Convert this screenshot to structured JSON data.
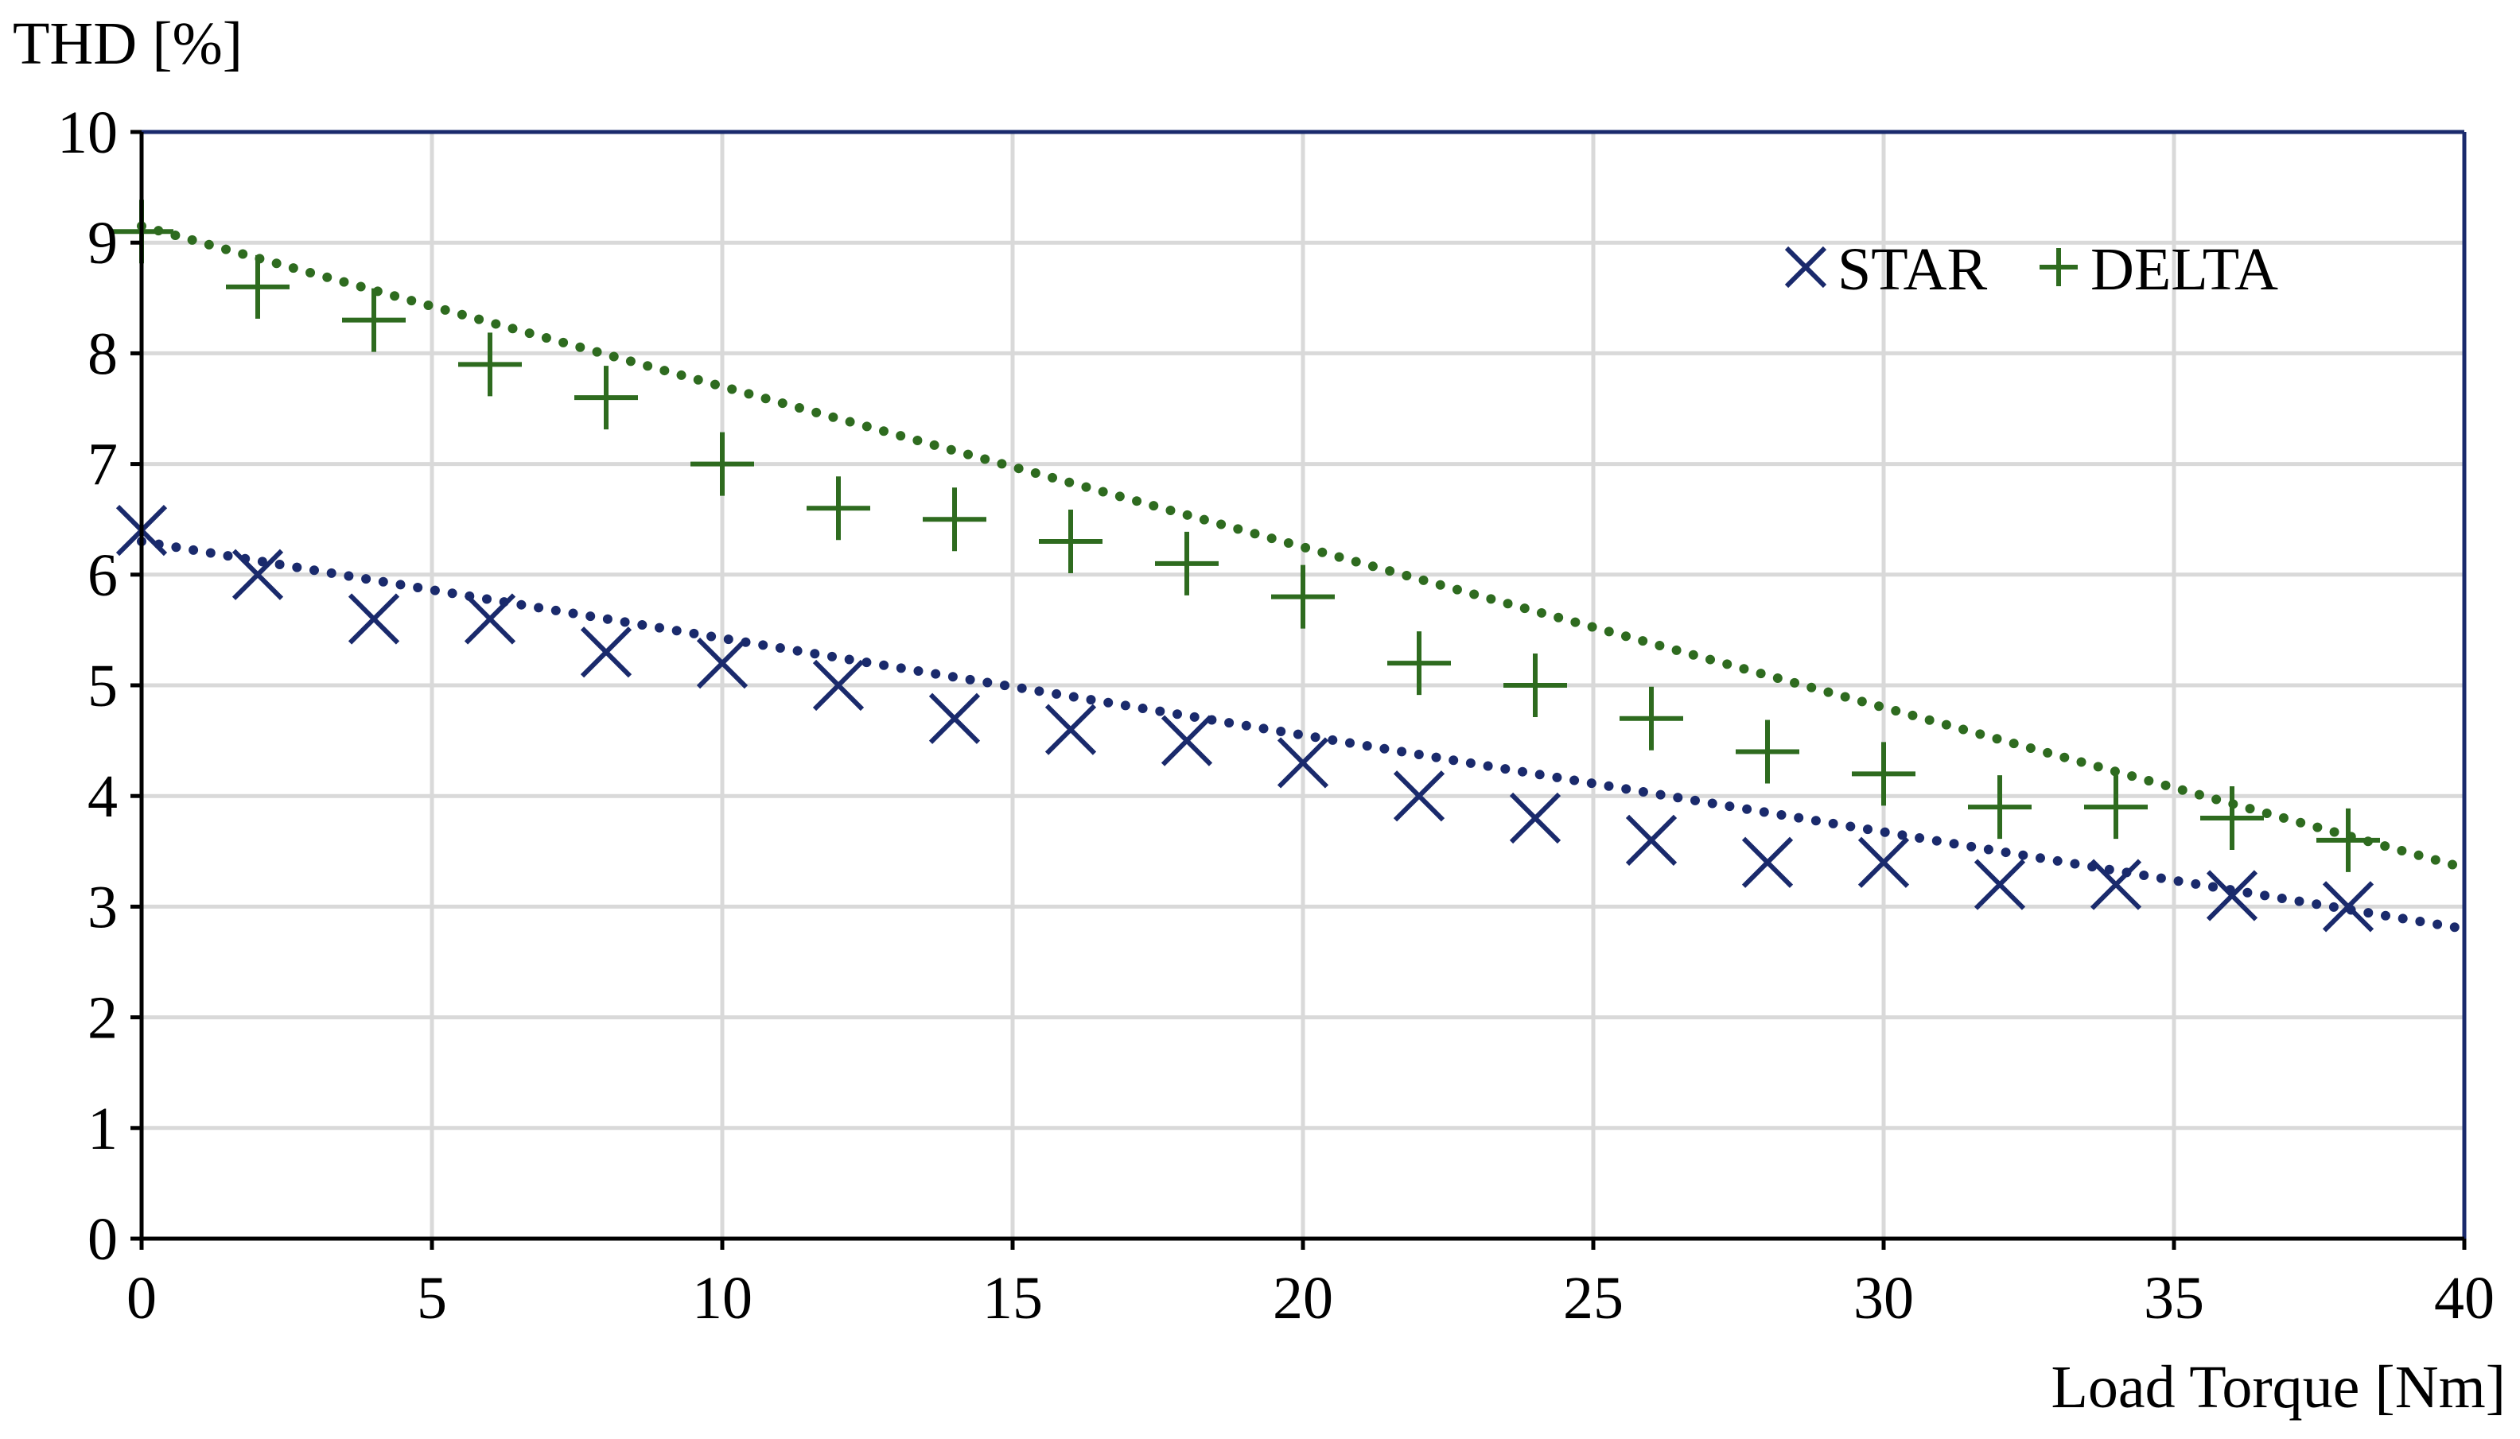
{
  "chart_data": {
    "type": "scatter",
    "ylabel": "THD [%]",
    "xlabel": "Load Torque [Nm]",
    "xlim": [
      0,
      40
    ],
    "ylim": [
      0,
      10
    ],
    "xticks": [
      0,
      5,
      10,
      15,
      20,
      25,
      30,
      35,
      40
    ],
    "yticks": [
      0,
      1,
      2,
      3,
      4,
      5,
      6,
      7,
      8,
      9,
      10
    ],
    "grid": true,
    "legend_position": "top-right",
    "series": [
      {
        "name": "STAR",
        "marker": "x",
        "color": "#1a2a6c",
        "x": [
          0,
          2,
          4,
          6,
          8,
          10,
          12,
          14,
          16,
          18,
          20,
          22,
          24,
          26,
          28,
          30,
          32,
          34,
          36,
          38
        ],
        "y": [
          6.4,
          6.0,
          5.6,
          5.6,
          5.3,
          5.2,
          5.0,
          4.7,
          4.6,
          4.5,
          4.3,
          4.0,
          3.8,
          3.6,
          3.4,
          3.4,
          3.2,
          3.2,
          3.1,
          3.0
        ],
        "trendline": {
          "style": "dotted",
          "x": [
            0,
            40
          ],
          "y": [
            6.3,
            2.8
          ]
        }
      },
      {
        "name": "DELTA",
        "marker": "+",
        "color": "#2e6b1f",
        "x": [
          0,
          2,
          4,
          6,
          8,
          10,
          12,
          14,
          16,
          18,
          20,
          22,
          24,
          26,
          28,
          30,
          32,
          34,
          36,
          38
        ],
        "y": [
          9.1,
          8.6,
          8.3,
          7.9,
          7.6,
          7.0,
          6.6,
          6.5,
          6.3,
          6.1,
          5.8,
          5.2,
          5.0,
          4.7,
          4.4,
          4.2,
          3.9,
          3.9,
          3.8,
          3.6
        ],
        "trendline": {
          "style": "dotted",
          "x": [
            0,
            40
          ],
          "y": [
            9.15,
            3.35
          ]
        }
      }
    ],
    "colors": {
      "axis_frame": "#1a2a6c",
      "grid": "#d9d9d9",
      "text": "#000000"
    }
  }
}
